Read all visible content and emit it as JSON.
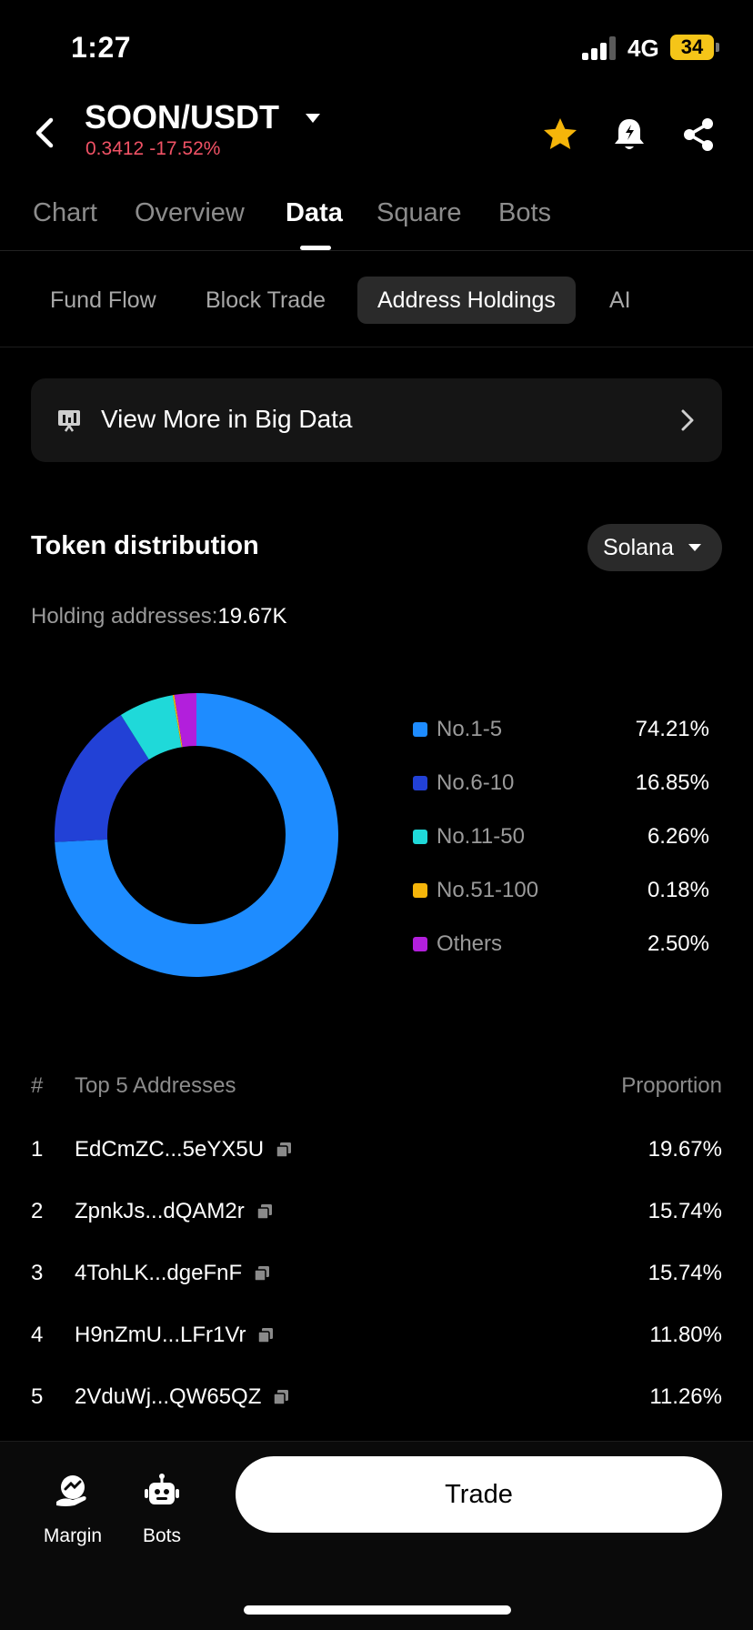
{
  "status_bar": {
    "time": "1:27",
    "network": "4G",
    "battery": "34"
  },
  "header": {
    "pair": "SOON/USDT",
    "price": "0.3412",
    "change": "-17.52%",
    "price_color": "#f05265",
    "icons": [
      "star-icon",
      "bell-icon",
      "share-icon"
    ],
    "favorite_color": "#f5b50a"
  },
  "main_tabs": [
    "Chart",
    "Overview",
    "Data",
    "Square",
    "Bots"
  ],
  "main_tabs_active": "Data",
  "sub_tabs": [
    "Fund Flow",
    "Block Trade",
    "Address Holdings",
    "AI"
  ],
  "sub_tabs_active": "Address Holdings",
  "big_data": {
    "label": "View More in Big Data"
  },
  "distribution": {
    "title": "Token distribution",
    "chain": "Solana",
    "holding_label": "Holding addresses:",
    "holding_value": "19.67K"
  },
  "chart_data": {
    "type": "pie",
    "categories": [
      "No.1-5",
      "No.6-10",
      "No.11-50",
      "No.51-100",
      "Others"
    ],
    "values": [
      74.21,
      16.85,
      6.26,
      0.18,
      2.5
    ],
    "value_labels": [
      "74.21%",
      "16.85%",
      "6.26%",
      "0.18%",
      "2.50%"
    ],
    "colors": [
      "#1e8cff",
      "#2241d6",
      "#1fd9d9",
      "#f5b50a",
      "#b21fdc"
    ],
    "hole": true,
    "legend_placement": "right"
  },
  "table": {
    "headers": {
      "rank": "#",
      "address": "Top 5 Addresses",
      "proportion": "Proportion"
    },
    "rows": [
      {
        "rank": "1",
        "address": "EdCmZC...5eYX5U",
        "proportion": "19.67%"
      },
      {
        "rank": "2",
        "address": "ZpnkJs...dQAM2r",
        "proportion": "15.74%"
      },
      {
        "rank": "3",
        "address": "4TohLK...dgeFnF",
        "proportion": "15.74%"
      },
      {
        "rank": "4",
        "address": "H9nZmU...LFr1Vr",
        "proportion": "11.80%"
      },
      {
        "rank": "5",
        "address": "2VduWj...QW65QZ",
        "proportion": "11.26%"
      }
    ]
  },
  "bottom_bar": {
    "margin": "Margin",
    "bots": "Bots",
    "trade": "Trade"
  }
}
